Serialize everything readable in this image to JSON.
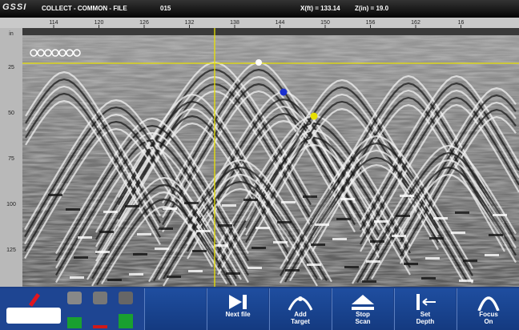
{
  "header": {
    "logo": "GSSI",
    "mode": "COLLECT - COMMON - FILE",
    "file_number": "015",
    "x_readout": "X(ft) = 133.14",
    "z_readout": "Z(in) = 19.0"
  },
  "distance_ruler": [
    "114",
    "120",
    "126",
    "132",
    "138",
    "144",
    "150",
    "156",
    "162",
    "16"
  ],
  "depth_ruler": [
    "in",
    "25",
    "50",
    "75",
    "100",
    "125"
  ],
  "toolbar": {
    "buttons": [
      {
        "lines": [
          "Next file"
        ]
      },
      {
        "lines": [
          "Add",
          "Target"
        ]
      },
      {
        "lines": [
          "Stop",
          "Scan"
        ]
      },
      {
        "lines": [
          "Set",
          "Depth"
        ]
      },
      {
        "lines": [
          "Focus",
          "On"
        ]
      }
    ]
  }
}
